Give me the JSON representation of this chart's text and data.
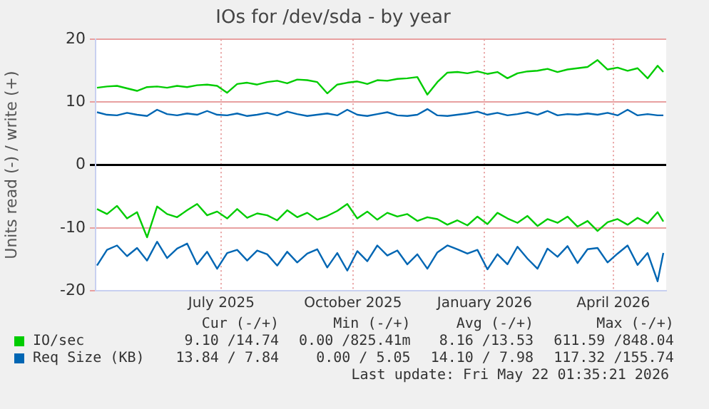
{
  "chart_data": {
    "type": "line",
    "title": "IOs for /dev/sda - by year",
    "ylabel": "Units read (-) / write (+)",
    "x": [
      "2025-04-20",
      "2025-04-27",
      "2025-05-04",
      "2025-05-11",
      "2025-05-18",
      "2025-05-25",
      "2025-06-01",
      "2025-06-08",
      "2025-06-15",
      "2025-06-22",
      "2025-06-29",
      "2025-07-06",
      "2025-07-13",
      "2025-07-20",
      "2025-07-27",
      "2025-08-03",
      "2025-08-10",
      "2025-08-17",
      "2025-08-24",
      "2025-08-31",
      "2025-09-07",
      "2025-09-14",
      "2025-09-21",
      "2025-09-28",
      "2025-10-05",
      "2025-10-12",
      "2025-10-19",
      "2025-10-26",
      "2025-11-02",
      "2025-11-09",
      "2025-11-16",
      "2025-11-23",
      "2025-11-30",
      "2025-12-07",
      "2025-12-14",
      "2025-12-21",
      "2025-12-28",
      "2026-01-04",
      "2026-01-11",
      "2026-01-18",
      "2026-01-25",
      "2026-02-01",
      "2026-02-08",
      "2026-02-15",
      "2026-02-22",
      "2026-03-01",
      "2026-03-08",
      "2026-03-15",
      "2026-03-22",
      "2026-03-29",
      "2026-04-05",
      "2026-04-12",
      "2026-04-19",
      "2026-04-26",
      "2026-05-03",
      "2026-05-10",
      "2026-05-17",
      "2026-05-21"
    ],
    "series": [
      {
        "name": "IO/sec",
        "color": "#00cc00",
        "values": [
          12.3,
          12.5,
          12.6,
          12.2,
          11.8,
          12.4,
          12.5,
          12.3,
          12.6,
          12.4,
          12.7,
          12.8,
          12.6,
          11.5,
          12.9,
          13.1,
          12.8,
          13.2,
          13.4,
          13.0,
          13.6,
          13.5,
          13.2,
          11.4,
          12.8,
          13.1,
          13.3,
          12.9,
          13.5,
          13.4,
          13.7,
          13.8,
          14.0,
          11.2,
          13.2,
          14.7,
          14.8,
          14.6,
          14.9,
          14.5,
          14.8,
          13.8,
          14.6,
          14.9,
          15.0,
          15.3,
          14.8,
          15.2,
          15.4,
          15.6,
          16.7,
          15.2,
          15.5,
          15.0,
          15.4,
          13.8,
          15.8,
          14.8
        ]
      },
      {
        "name": "Req Size (KB)",
        "color": "#0066b3",
        "values": [
          8.4,
          8.0,
          7.9,
          8.3,
          8.0,
          7.8,
          8.8,
          8.1,
          7.9,
          8.2,
          8.0,
          8.6,
          8.0,
          7.9,
          8.2,
          7.8,
          8.0,
          8.3,
          7.9,
          8.5,
          8.1,
          7.8,
          8.0,
          8.2,
          7.9,
          8.8,
          8.0,
          7.8,
          8.1,
          8.4,
          7.9,
          7.8,
          8.0,
          8.9,
          7.9,
          7.8,
          8.0,
          8.2,
          8.5,
          8.0,
          8.3,
          7.9,
          8.1,
          8.4,
          8.0,
          8.6,
          7.9,
          8.1,
          8.0,
          8.2,
          8.0,
          8.3,
          7.9,
          8.8,
          7.9,
          8.1,
          7.9,
          7.9
        ]
      },
      {
        "color": "#00cc00",
        "values": [
          -7,
          -7.8,
          -6.5,
          -8.5,
          -7.5,
          -11.5,
          -6.6,
          -7.8,
          -8.3,
          -7.2,
          -6.2,
          -8,
          -7.4,
          -8.5,
          -7,
          -8.4,
          -7.7,
          -8,
          -8.8,
          -7.2,
          -8.3,
          -7.6,
          -8.7,
          -8.1,
          -7.3,
          -6.2,
          -8.5,
          -7.4,
          -8.7,
          -7.6,
          -8.2,
          -7.8,
          -8.9,
          -8.3,
          -8.6,
          -9.5,
          -8.8,
          -9.6,
          -8.2,
          -9.4,
          -7.6,
          -8.5,
          -9.2,
          -8.1,
          -9.7,
          -8.6,
          -9.2,
          -8.2,
          -9.8,
          -8.9,
          -10.5,
          -9.1,
          -8.6,
          -9.5,
          -8.4,
          -9.3,
          -7.5,
          -9
        ]
      },
      {
        "color": "#0066b3",
        "values": [
          -16,
          -13.5,
          -12.8,
          -14.5,
          -13.2,
          -15.2,
          -12.2,
          -14.8,
          -13.3,
          -12.5,
          -15.8,
          -13.8,
          -16.5,
          -14,
          -13.5,
          -15.2,
          -13.6,
          -14.2,
          -16,
          -13.8,
          -15.5,
          -14.1,
          -13.4,
          -16.3,
          -14,
          -16.8,
          -13.7,
          -15.3,
          -12.8,
          -14.4,
          -13.6,
          -15.8,
          -14.2,
          -16.5,
          -13.9,
          -12.8,
          -13.4,
          -14.1,
          -13.5,
          -16.6,
          -14.2,
          -15.8,
          -13,
          -14.9,
          -16.5,
          -13.3,
          -14.6,
          -12.9,
          -15.6,
          -13.4,
          -13.2,
          -15.5,
          -14.1,
          -12.8,
          -15.9,
          -14,
          -18.5,
          -14
        ]
      }
    ],
    "xlim": [
      "2025-04-19",
      "2026-05-23"
    ],
    "xticks": [
      {
        "value": "2025-07-16",
        "label": "July 2025"
      },
      {
        "value": "2025-10-16",
        "label": "October 2025"
      },
      {
        "value": "2026-01-16",
        "label": "January 2026"
      },
      {
        "value": "2026-04-16",
        "label": "April 2026"
      }
    ],
    "ylim": [
      -20,
      20
    ],
    "yticks": [
      -20,
      -10,
      0,
      10,
      20
    ],
    "grid": true,
    "legend": "bottom",
    "marker": "none",
    "line_style": "solid",
    "annotations": [
      "Cur (-/+)",
      "Min (-/+)",
      "Avg (-/+)",
      "Max (-/+)",
      "9.10 /14.74",
      "0.00 /825.41m",
      "8.16 /13.53",
      "611.59 /848.04",
      "13.84 / 7.84",
      "0.00 / 5.05",
      "14.10 / 7.98",
      "117.32 /155.74",
      "Last update: Fri May 22 01:35:21 2026"
    ]
  }
}
